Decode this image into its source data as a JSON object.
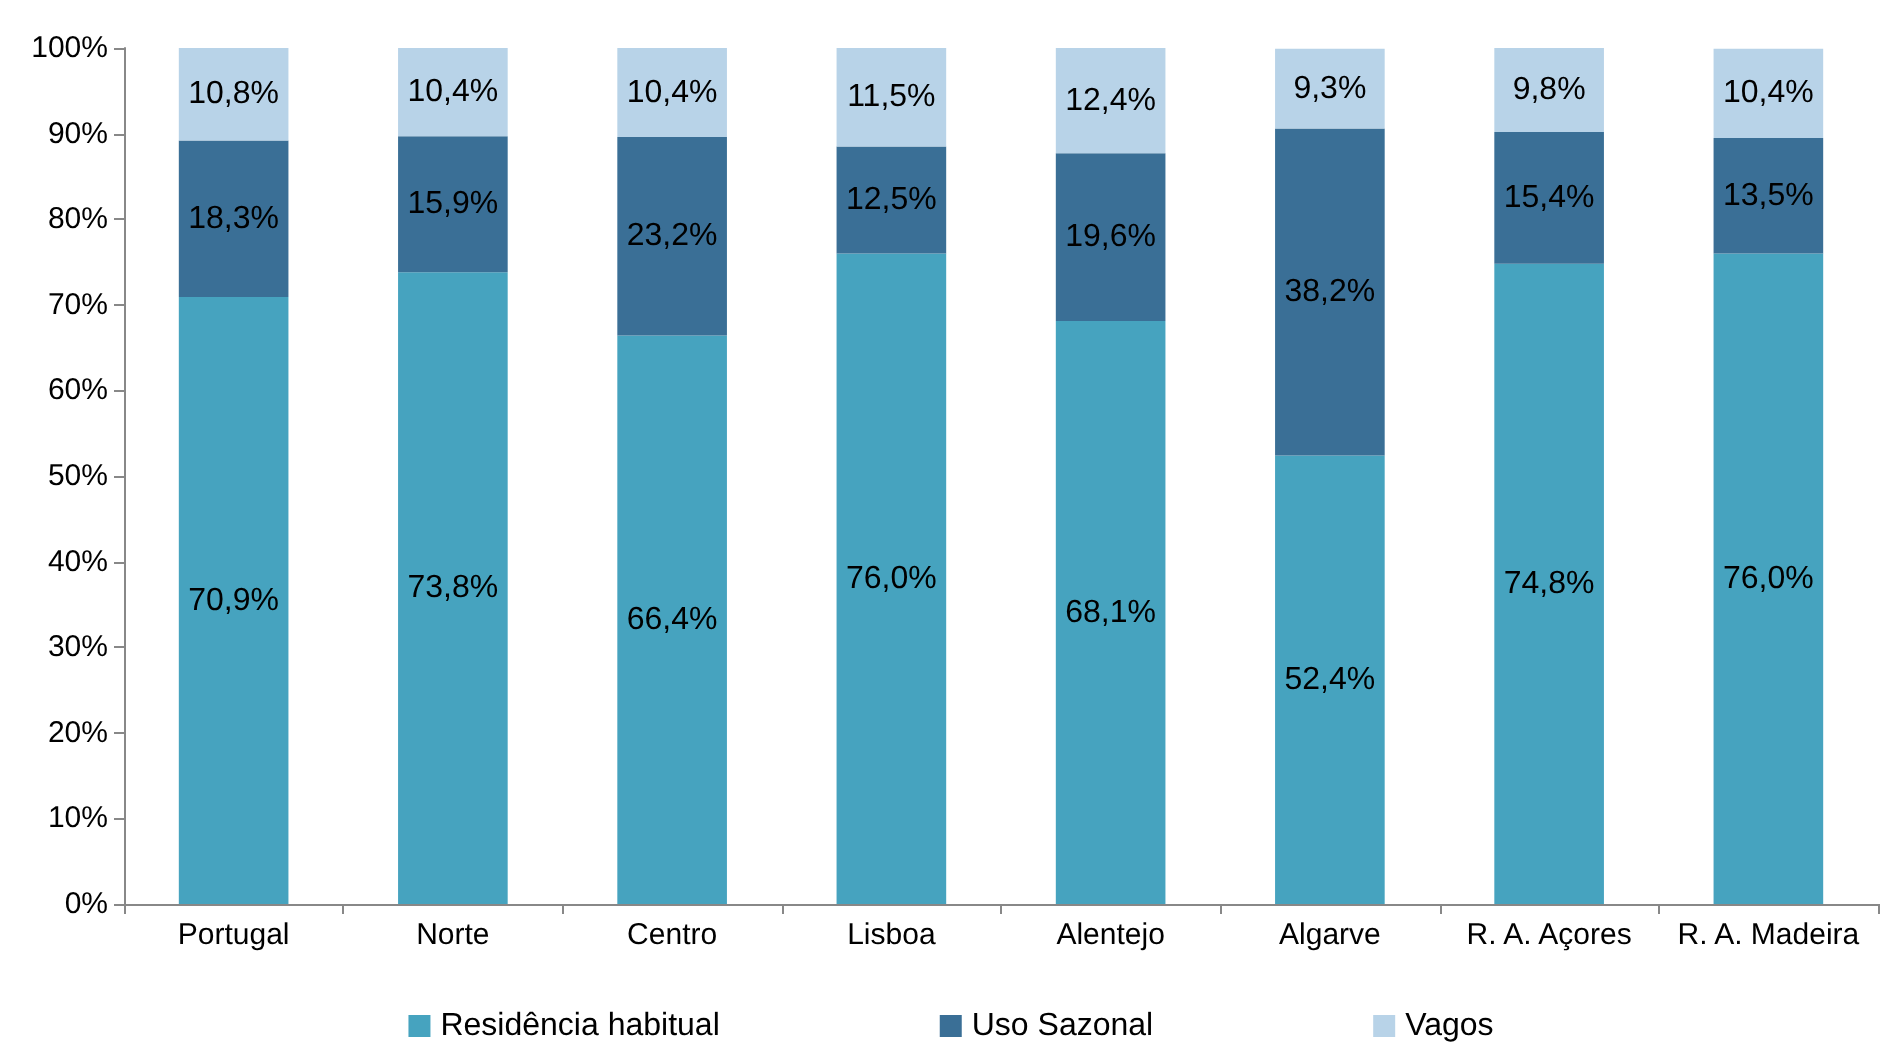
{
  "chart_data": {
    "type": "bar",
    "stacked": true,
    "categories": [
      "Portugal",
      "Norte",
      "Centro",
      "Lisboa",
      "Alentejo",
      "Algarve",
      "R. A. Açores",
      "R. A. Madeira"
    ],
    "series": [
      {
        "name": "Residência habitual",
        "color": "#46a3bf",
        "values": [
          70.9,
          73.8,
          66.4,
          76.0,
          68.1,
          52.4,
          74.8,
          76.0
        ],
        "value_labels": [
          "70,9%",
          "73,8%",
          "66,4%",
          "76,0%",
          "68,1%",
          "52,4%",
          "74,8%",
          "76,0%"
        ]
      },
      {
        "name": "Uso Sazonal",
        "color": "#3a6f96",
        "values": [
          18.3,
          15.9,
          23.2,
          12.5,
          19.6,
          38.2,
          15.4,
          13.5
        ],
        "value_labels": [
          "18,3%",
          "15,9%",
          "23,2%",
          "12,5%",
          "19,6%",
          "38,2%",
          "15,4%",
          "13,5%"
        ]
      },
      {
        "name": "Vagos",
        "color": "#b8d3e8",
        "values": [
          10.8,
          10.4,
          10.4,
          11.5,
          12.4,
          9.3,
          9.8,
          10.4
        ],
        "value_labels": [
          "10,8%",
          "10,4%",
          "10,4%",
          "11,5%",
          "12,4%",
          "9,3%",
          "9,8%",
          "10,4%"
        ]
      }
    ],
    "ylim": [
      0,
      100
    ],
    "yticks": [
      {
        "value": 0,
        "label": "0%"
      },
      {
        "value": 10,
        "label": "10%"
      },
      {
        "value": 20,
        "label": "20%"
      },
      {
        "value": 30,
        "label": "30%"
      },
      {
        "value": 40,
        "label": "40%"
      },
      {
        "value": 50,
        "label": "50%"
      },
      {
        "value": 60,
        "label": "60%"
      },
      {
        "value": 70,
        "label": "70%"
      },
      {
        "value": 80,
        "label": "80%"
      },
      {
        "value": 90,
        "label": "90%"
      },
      {
        "value": 100,
        "label": "100%"
      }
    ],
    "grid": false,
    "legend": "bottom"
  }
}
